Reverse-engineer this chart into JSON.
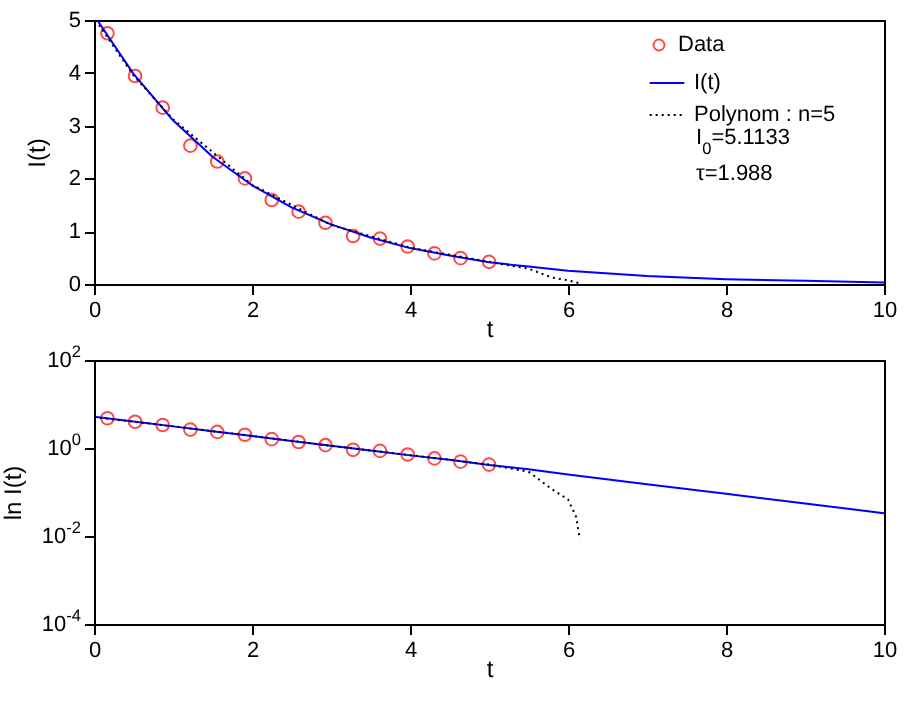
{
  "chart_data": [
    {
      "type": "line",
      "xlabel": "t",
      "ylabel": "I(t)",
      "xlim": [
        0,
        10
      ],
      "xticks": [
        0,
        2,
        4,
        6,
        8,
        10
      ],
      "ylim": [
        0,
        5
      ],
      "yticks": [
        0,
        1,
        2,
        3,
        4,
        5
      ],
      "legend": "top right",
      "annotations": [
        "I$_{0}$=5.1133",
        "τ=1.988"
      ],
      "series": [
        {
          "name": "Data",
          "type": "scatter",
          "marker": "circle",
          "color": "#ff0000",
          "x": [
            0.17,
            0.52,
            0.87,
            1.22,
            1.56,
            1.91,
            2.25,
            2.59,
            2.93,
            3.28,
            3.62,
            3.97,
            4.31,
            4.64,
            5.0
          ],
          "values": [
            4.75,
            3.94,
            3.34,
            2.62,
            2.32,
            2.0,
            1.59,
            1.37,
            1.16,
            0.91,
            0.86,
            0.71,
            0.58,
            0.49,
            0.42
          ]
        },
        {
          "name": "I(t)",
          "type": "line",
          "line_style": "solid",
          "color": "#0000ff",
          "x": [
            0.04,
            0.5,
            1,
            1.5,
            2,
            2.5,
            3,
            3.5,
            4,
            4.5,
            5,
            5.5,
            6,
            7,
            8,
            9,
            10
          ],
          "values": [
            5.0,
            3.98,
            3.1,
            2.41,
            1.87,
            1.45,
            1.13,
            0.88,
            0.68,
            0.54,
            0.41,
            0.33,
            0.25,
            0.15,
            0.09,
            0.06,
            0.03
          ]
        },
        {
          "name": "Polynom : n=5",
          "type": "line",
          "line_style": "dotted",
          "color": "#000000",
          "x": [
            0.02,
            0.5,
            1,
            2,
            3,
            4,
            5,
            5.5,
            5.8,
            6.0,
            6.1,
            6.15
          ],
          "values": [
            5.0,
            3.95,
            3.12,
            1.88,
            1.12,
            0.69,
            0.42,
            0.29,
            0.12,
            0.07,
            0.03,
            0.01
          ]
        }
      ]
    },
    {
      "type": "line",
      "xlabel": "t",
      "ylabel": "ln I(t)",
      "xlim": [
        0,
        10
      ],
      "xticks": [
        0,
        2,
        4,
        6,
        8,
        10
      ],
      "log": "y",
      "ylim": [
        0.0001,
        100
      ],
      "yticks": [
        {
          "value": 0.0001,
          "label": "10$^{-4}$"
        },
        {
          "value": 0.01,
          "label": "10$^{-2}$"
        },
        {
          "value": 1,
          "label": "10$^{0}$"
        },
        {
          "value": 100,
          "label": "10$^{2}$"
        }
      ],
      "series": [
        {
          "type": "scatter",
          "marker": "circle",
          "color": "#ff0000",
          "x": [
            0.17,
            0.52,
            0.87,
            1.22,
            1.56,
            1.91,
            2.25,
            2.59,
            2.93,
            3.28,
            3.62,
            3.97,
            4.31,
            4.64,
            5.0
          ],
          "values": [
            4.75,
            3.94,
            3.34,
            2.62,
            2.32,
            2.0,
            1.59,
            1.37,
            1.16,
            0.91,
            0.86,
            0.71,
            0.58,
            0.49,
            0.42
          ]
        },
        {
          "type": "line",
          "line_style": "solid",
          "color": "#0000ff",
          "x": [
            0,
            0.5,
            1,
            1.5,
            2,
            2.5,
            3,
            3.5,
            4,
            4.5,
            5,
            5.5,
            6,
            7,
            8,
            9,
            10
          ],
          "values": [
            5.11,
            3.98,
            3.1,
            2.41,
            1.87,
            1.45,
            1.13,
            0.88,
            0.68,
            0.54,
            0.41,
            0.33,
            0.25,
            0.15,
            0.091,
            0.055,
            0.033
          ]
        },
        {
          "type": "line",
          "line_style": "dotted",
          "color": "#000000",
          "x": [
            0,
            0.5,
            1,
            2,
            3,
            4,
            5,
            5.5,
            5.8,
            6.0,
            6.1,
            6.15
          ],
          "values": [
            5.05,
            3.95,
            3.12,
            1.88,
            1.12,
            0.69,
            0.42,
            0.29,
            0.115,
            0.068,
            0.028,
            0.0085
          ]
        }
      ]
    }
  ]
}
